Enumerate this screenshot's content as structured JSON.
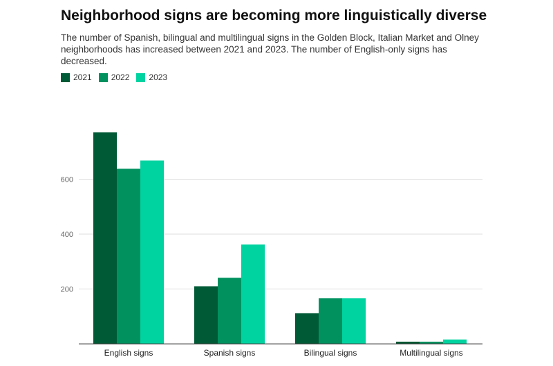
{
  "chart_data": {
    "type": "bar",
    "title": "Neighborhood signs are becoming more linguistically diverse",
    "subtitle": "The number of Spanish, bilingual and multilingual signs in the Golden Block, Italian Market and Olney neighborhoods has increased between 2021 and 2023. The number of English-only signs has decreased.",
    "categories": [
      "English signs",
      "Spanish signs",
      "Bilingual signs",
      "Multilingual signs"
    ],
    "series": [
      {
        "name": "2021",
        "color": "#005a36",
        "values": [
          771,
          210,
          112,
          8
        ]
      },
      {
        "name": "2022",
        "color": "#00915f",
        "values": [
          638,
          241,
          166,
          8
        ]
      },
      {
        "name": "2023",
        "color": "#00d3a0",
        "values": [
          668,
          362,
          166,
          16
        ]
      }
    ],
    "y_ticks": [
      200,
      400,
      600
    ],
    "ylim": [
      0,
      800
    ],
    "grid": true,
    "legend_position": "top-left"
  }
}
